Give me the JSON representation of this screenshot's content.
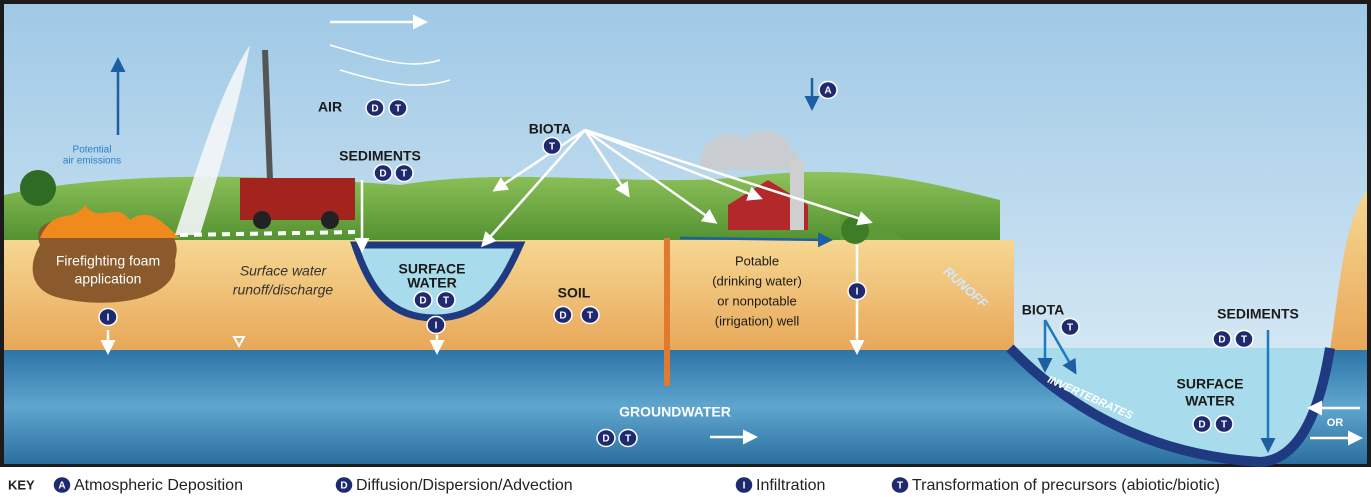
{
  "labels": [
    {
      "lines": [
        "Potential",
        "air emissions"
      ]
    },
    {
      "lines": [
        "AIR"
      ],
      "badges": [
        "D",
        "T"
      ]
    },
    {
      "lines": [
        "SEDIMENTS"
      ],
      "badges": [
        "D",
        "T"
      ]
    },
    {
      "lines": [
        "BIOTA"
      ],
      "badges": [
        "T"
      ]
    },
    {
      "lines": [],
      "badges": [
        "A"
      ]
    },
    {
      "lines": [
        "Firefighting foam",
        "application"
      ]
    },
    {
      "lines": [
        "Surface water",
        "runoff/discharge"
      ]
    },
    {
      "lines": [
        "SURFACE",
        "WATER"
      ],
      "badges": [
        "D",
        "T",
        "I"
      ]
    },
    {
      "lines": [
        "SOIL"
      ],
      "badges": [
        "D",
        "T"
      ]
    },
    {
      "lines": [
        "Potable",
        "(drinking water)",
        "or nonpotable",
        "(irrigation) well"
      ]
    },
    {
      "lines": [],
      "badges": [
        "I"
      ]
    },
    {
      "lines": [],
      "badges": [
        "I"
      ]
    },
    {
      "lines": [
        "RUNOFF"
      ]
    },
    {
      "lines": [
        "BIOTA"
      ],
      "badges": [
        "T"
      ]
    },
    {
      "lines": [
        "SEDIMENTS"
      ],
      "badges": [
        "D",
        "T"
      ]
    },
    {
      "lines": [
        "INVERTEBRATES"
      ]
    },
    {
      "lines": [
        "SURFACE",
        "WATER"
      ],
      "badges": [
        "D",
        "T"
      ]
    },
    {
      "lines": [
        "GROUNDWATER"
      ],
      "badges": [
        "D",
        "T"
      ]
    },
    {
      "lines": [
        "OR"
      ]
    }
  ],
  "key": {
    "title": "KEY",
    "items": [
      {
        "badge": "A",
        "text": "Atmospheric Deposition"
      },
      {
        "badge": "D",
        "text": "Diffusion/Dispersion/Advection"
      },
      {
        "badge": "I",
        "text": "Infiltration"
      },
      {
        "badge": "T",
        "text": "Transformation of precursors (abiotic/biotic)"
      }
    ]
  }
}
